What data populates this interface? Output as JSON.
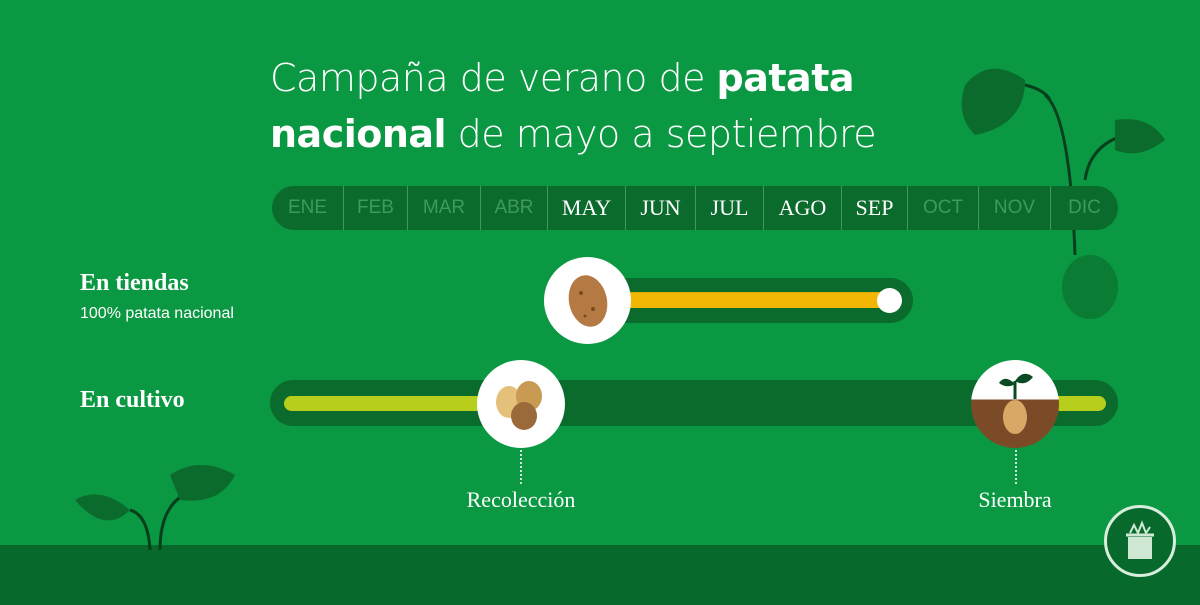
{
  "title": {
    "part1": "Campaña de verano de ",
    "bold1": "patata",
    "bold2": "nacional",
    "part2": " de mayo a septiembre"
  },
  "months": [
    {
      "label": "ENE",
      "active": false
    },
    {
      "label": "FEB",
      "active": false
    },
    {
      "label": "MAR",
      "active": false
    },
    {
      "label": "ABR",
      "active": false
    },
    {
      "label": "MAY",
      "active": true
    },
    {
      "label": "JUN",
      "active": true
    },
    {
      "label": "JUL",
      "active": true
    },
    {
      "label": "AGO",
      "active": true
    },
    {
      "label": "SEP",
      "active": true
    },
    {
      "label": "OCT",
      "active": false
    },
    {
      "label": "NOV",
      "active": false
    },
    {
      "label": "DIC",
      "active": false
    }
  ],
  "tiendas": {
    "label": "En tiendas",
    "sublabel": "100% patata nacional",
    "from": "MAY",
    "to": "SEP"
  },
  "cultivo": {
    "label": "En cultivo",
    "recoleccion": "Recolección",
    "siembra": "Siembra"
  },
  "colors": {
    "background": "#0b9842",
    "track": "#0a6b2c",
    "tiendas_bar": "#f2b705",
    "cultivo_bar": "#b7cf1c"
  },
  "icons": [
    "potato-icon",
    "potatoes-icon",
    "sprouting-potato-icon",
    "basket-logo-icon",
    "leaf-icon"
  ]
}
